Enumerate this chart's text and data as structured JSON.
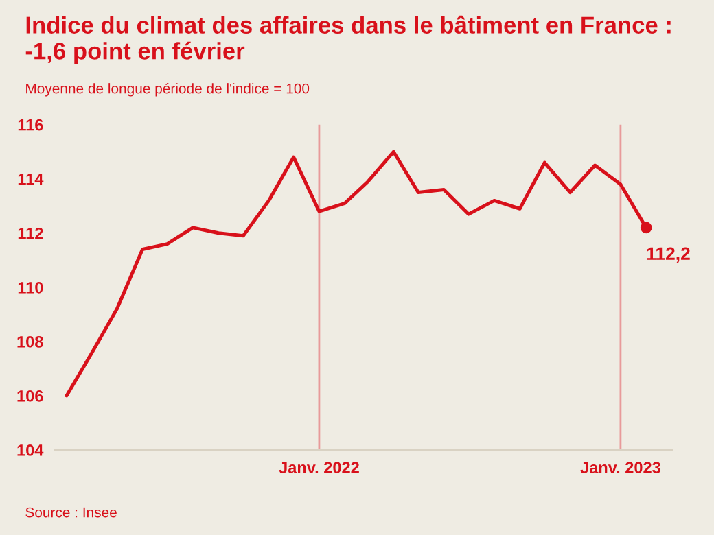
{
  "chart_data": {
    "type": "line",
    "title": "Indice du climat des affaires dans le bâtiment en France : -1,6 point en février",
    "subtitle": "Moyenne de longue période de l'indice = 100",
    "x": [
      "2021-03",
      "2021-04",
      "2021-05",
      "2021-06",
      "2021-07",
      "2021-08",
      "2021-09",
      "2021-10",
      "2021-11",
      "2021-12",
      "2022-01",
      "2022-02",
      "2022-03",
      "2022-04",
      "2022-05",
      "2022-06",
      "2022-07",
      "2022-08",
      "2022-09",
      "2022-10",
      "2022-11",
      "2022-12",
      "2023-01",
      "2023-02"
    ],
    "series": [
      {
        "color": "#d8111b",
        "values": [
          106.0,
          107.6,
          109.2,
          111.4,
          111.6,
          112.2,
          112.0,
          111.9,
          113.2,
          114.8,
          112.8,
          113.1,
          113.9,
          115.0,
          113.5,
          113.6,
          112.7,
          113.2,
          112.9,
          114.6,
          113.5,
          114.5,
          113.8,
          112.2
        ]
      }
    ],
    "xlim": [
      "2021-02-15",
      "2023-03-05"
    ],
    "xticks": [
      {
        "value": "2022-01",
        "label": "Janv. 2022"
      },
      {
        "value": "2023-01",
        "label": "Janv. 2023"
      }
    ],
    "ylim": [
      104,
      116
    ],
    "yticks": [
      104,
      106,
      108,
      110,
      112,
      114,
      116
    ],
    "ref_lines": [
      {
        "axis": "x",
        "value": "2022-01",
        "color": "#e89a9a"
      },
      {
        "axis": "x",
        "value": "2023-01",
        "color": "#e89a9a"
      }
    ],
    "annotations": [
      {
        "text": "112,2",
        "x": "2023-02",
        "y": 112.2
      },
      "Source : Insee"
    ],
    "grid": false,
    "legend": false,
    "marker": "none",
    "line_style": "solid"
  }
}
